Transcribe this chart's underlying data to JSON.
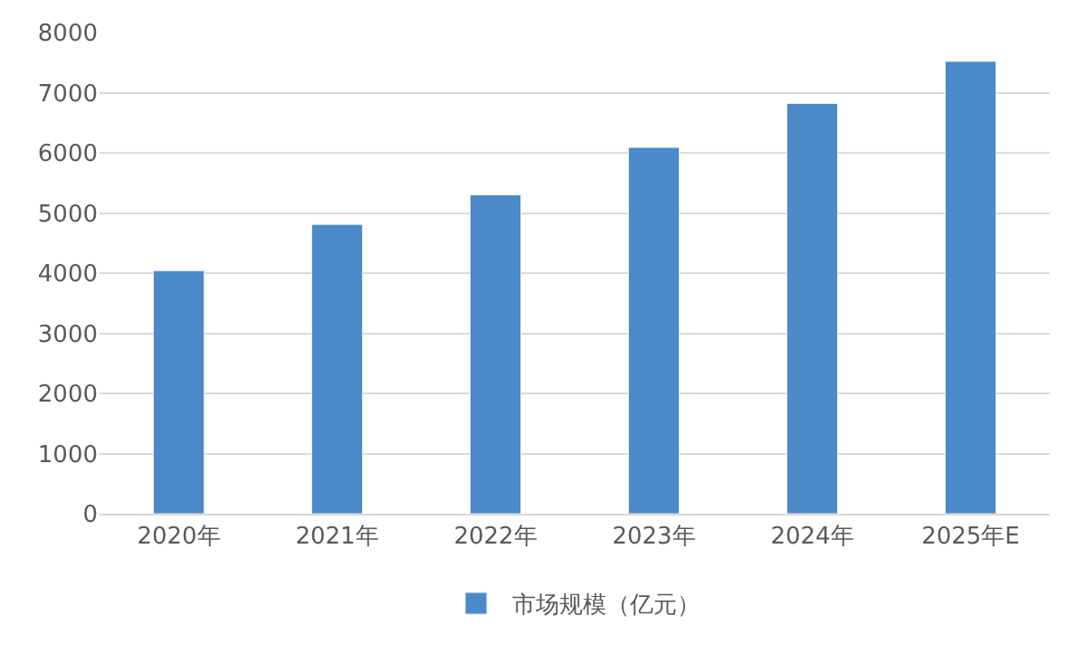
{
  "chart_data": {
    "type": "bar",
    "categories": [
      "2020年",
      "2021年",
      "2022年",
      "2023年",
      "2024年",
      "2025年E"
    ],
    "series": [
      {
        "name": "市场规模（亿元）",
        "color": "#4a8ac8",
        "values": [
          4040,
          4810,
          5300,
          6090,
          6820,
          7520
        ]
      }
    ],
    "ylim": [
      0,
      8000
    ],
    "yticks": [
      0,
      1000,
      2000,
      3000,
      4000,
      5000,
      6000,
      7000,
      8000
    ],
    "grid": "y",
    "legend": "bottom"
  }
}
